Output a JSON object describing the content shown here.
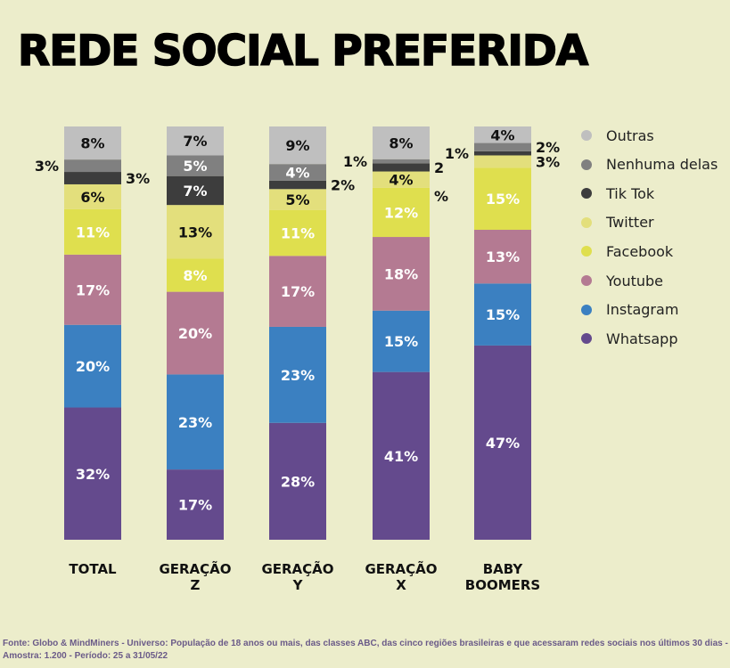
{
  "title": "REDE SOCIAL PREFERIDA",
  "source": "Fonte: Globo & MindMiners - Universo: População de 18 anos ou mais, das classes ABC, das cinco regiões brasileiras e que acessaram redes sociais nos últimos 30 dias - Amostra: 1.200 - Período: 25 a 31/05/22",
  "chart_data": {
    "type": "bar",
    "stacked": true,
    "categories": [
      "TOTAL",
      "GERAÇÃO\nZ",
      "GERAÇÃO\nY",
      "GERAÇÃO\nX",
      "BABY\nBOOMERS"
    ],
    "legend_placement": "right",
    "series": [
      {
        "name": "Whatsapp",
        "color": "#644a8d",
        "values": [
          32,
          17,
          28,
          41,
          47
        ],
        "labels": [
          "32%",
          "17%",
          "28%",
          "41%",
          "47%"
        ]
      },
      {
        "name": "Instagram",
        "color": "#3b80c1",
        "values": [
          20,
          23,
          23,
          15,
          15
        ],
        "labels": [
          "20%",
          "23%",
          "23%",
          "15%",
          "15%"
        ]
      },
      {
        "name": "Youtube",
        "color": "#b47a92",
        "values": [
          17,
          20,
          17,
          18,
          13
        ],
        "labels": [
          "17%",
          "20%",
          "17%",
          "18%",
          "13%"
        ]
      },
      {
        "name": "Facebook",
        "color": "#dfdf4e",
        "values": [
          11,
          8,
          11,
          12,
          15
        ],
        "labels": [
          "11%",
          "8%",
          "11%",
          "12%",
          "15%"
        ]
      },
      {
        "name": "Twitter",
        "color": "#e3df7c",
        "values": [
          6,
          13,
          5,
          4,
          3
        ],
        "labels": [
          "6%",
          "13%",
          "5%",
          "4%",
          "3%"
        ]
      },
      {
        "name": "Tik Tok",
        "color": "#3d3d3d",
        "values": [
          3,
          7,
          2,
          2,
          1
        ],
        "labels": [
          "3%",
          "7%",
          "2%",
          "2",
          "1%"
        ]
      },
      {
        "name": "Nenhuma delas",
        "color": "#808080",
        "values": [
          3,
          5,
          4,
          1,
          2
        ],
        "labels": [
          "3%",
          "5%",
          "4%",
          "1%",
          "2%"
        ]
      },
      {
        "name": "Outras",
        "color": "#bfbfbf",
        "values": [
          8,
          7,
          9,
          8,
          4
        ],
        "labels": [
          "8%",
          "7%",
          "9%",
          "8%",
          "4%"
        ]
      }
    ],
    "extra_annotations": [
      {
        "category": "GERAÇÃO\nX",
        "text": "%"
      }
    ]
  }
}
